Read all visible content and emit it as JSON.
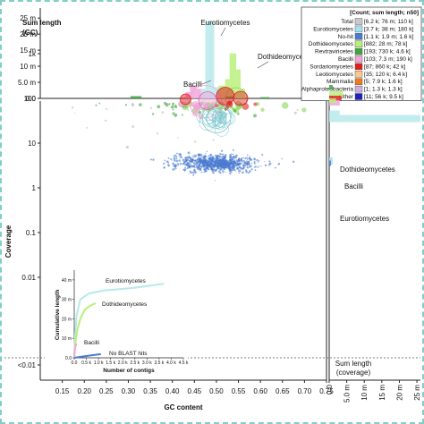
{
  "chart_data": {
    "type": "scatter",
    "title": "",
    "xlabel": "GC content",
    "ylabel": "Coverage",
    "xlim": [
      0.1,
      0.75
    ],
    "xticks": [
      "0.15",
      "0.20",
      "0.25",
      "0.30",
      "0.35",
      "0.40",
      "0.45",
      "0.50",
      "0.55",
      "0.60",
      "0.65",
      "0.70",
      "0.75"
    ],
    "yticks": [
      "1k",
      "100",
      "10",
      "1",
      "0.1",
      "0.01",
      "<0.01"
    ],
    "top_panel": {
      "ylabel": "Sum length\n(GC)",
      "yticks": [
        "25 m",
        "20 m",
        "15 m",
        "10 m",
        "5.0 m",
        "0.0"
      ],
      "ylim_m": [
        0,
        27
      ],
      "annotations": [
        "Eurotiomycetes",
        "Dothideomycetes",
        "Bacilli"
      ],
      "series": [
        {
          "taxon": "Eurotiomycetes",
          "color": "#b7e9ea",
          "bins": [
            [
              0.475,
              0.495,
              24.0
            ],
            [
              0.465,
              0.475,
              3.0
            ],
            [
              0.495,
              0.505,
              3.5
            ]
          ]
        },
        {
          "taxon": "Dothideomycetes",
          "color": "#b8f07a",
          "bins": [
            [
              0.505,
              0.52,
              4.0
            ],
            [
              0.52,
              0.53,
              6.0
            ],
            [
              0.53,
              0.545,
              14.0
            ],
            [
              0.545,
              0.555,
              9.0
            ],
            [
              0.555,
              0.565,
              3.0
            ]
          ]
        },
        {
          "taxon": "Bacilli",
          "color": "#f0a6d8",
          "bins": [
            [
              0.43,
              0.44,
              2.0
            ],
            [
              0.44,
              0.455,
              4.0
            ],
            [
              0.455,
              0.465,
              3.0
            ]
          ]
        },
        {
          "taxon": "Revtraviricetes",
          "color": "#3fa53f",
          "bins": [
            [
              0.305,
              0.33,
              0.7
            ],
            [
              0.52,
              0.54,
              0.6
            ],
            [
              0.6,
              0.62,
              0.4
            ]
          ]
        }
      ]
    },
    "right_panel": {
      "xlabel": "Sum length\n(coverage)",
      "xticks": [
        "0.0",
        "5.0 m",
        "10 m",
        "15 m",
        "20 m",
        "25 m"
      ],
      "annotations": [
        "Dothideomycetes",
        "Bacilli",
        "Eurotiomycetes"
      ]
    },
    "legend": {
      "header": "[Count; sum length; n50]",
      "placement": "top-right",
      "entries": [
        {
          "name": "Total",
          "stats": "[6.2 k; 76 m; 110 k]",
          "color": "#c8c8c8"
        },
        {
          "name": "Eurotiomycetes",
          "stats": "[3.7 k; 38 m; 180 k]",
          "color": "#a6dff0"
        },
        {
          "name": "No-hit",
          "stats": "[1.1 k; 1.9 m; 1.6 k]",
          "color": "#4a7ad0"
        },
        {
          "name": "Dothideomycetes",
          "stats": "[882; 28 m; 78 k]",
          "color": "#b8f07a"
        },
        {
          "name": "Revtraviricetes",
          "stats": "[193; 730 k; 4.6 k]",
          "color": "#3fa53f"
        },
        {
          "name": "Bacilli",
          "stats": "[103; 7.3 m; 190 k]",
          "color": "#f0a6d8"
        },
        {
          "name": "Sordariomycetes",
          "stats": "[87; 860 k; 42 k]",
          "color": "#e02020"
        },
        {
          "name": "Leotiomycetes",
          "stats": "[35; 120 k; 6.4 k]",
          "color": "#f8c890"
        },
        {
          "name": "Mammalia",
          "stats": "[5; 7.9 k; 1.6 k]",
          "color": "#f07820"
        },
        {
          "name": "Alphaproteobacteria",
          "stats": "[1; 1.3 k; 1.3 k]",
          "color": "#c8b0e0"
        },
        {
          "name": "Other",
          "stats": "[11; 56 k; 9.5 k]",
          "color": "#2020c0"
        }
      ]
    },
    "clusters": [
      {
        "taxon": "No-hit",
        "color": "#4a7ad0",
        "gc": 0.5,
        "gc_sd": 0.045,
        "log_cov": 0.55,
        "log_sd": 0.09,
        "n": 900,
        "r": 1.0
      },
      {
        "taxon": "Eurotiomycetes",
        "color": "#7ec8d0",
        "gc": 0.5,
        "gc_sd": 0.012,
        "log_cov": 1.55,
        "log_sd": 0.1,
        "n": 22,
        "r": 9
      },
      {
        "taxon": "Dothideomycetes",
        "color": "#8ed45a",
        "gc": 0.5,
        "gc_sd": 0.055,
        "log_cov": 2.0,
        "log_sd": 0.12,
        "n": 130,
        "r": 3
      },
      {
        "taxon": "Revtraviricetes",
        "color": "#3fa53f",
        "gc": 0.44,
        "gc_sd": 0.08,
        "log_cov": 2.0,
        "log_sd": 0.18,
        "n": 110,
        "r": 1.5
      },
      {
        "taxon": "Bacilli",
        "color": "#f0a6d8",
        "gc": 0.44,
        "gc_sd": 0.02,
        "log_cov": 1.9,
        "log_sd": 0.15,
        "n": 25,
        "r": 3
      },
      {
        "taxon": "Sordariomycetes",
        "color": "#e02020",
        "gc": 0.53,
        "gc_sd": 0.05,
        "log_cov": 2.0,
        "log_sd": 0.1,
        "n": 40,
        "r": 3
      },
      {
        "taxon": "Total-scatter",
        "color": "#b8b8b8",
        "gc": 0.4,
        "gc_sd": 0.15,
        "log_cov": 2.6,
        "log_sd": 0.7,
        "n": 120,
        "r": 1.2
      }
    ],
    "inset": {
      "type": "line",
      "xlabel": "Number of contigs",
      "ylabel": "Cumulative length",
      "xticks": [
        "0.0",
        "0.5 k",
        "1.0 k",
        "1.5 k",
        "2.0 k",
        "2.5 k",
        "3.0 k",
        "3.5 k",
        "4.0 k",
        "4.5 k"
      ],
      "yticks": [
        "40 m",
        "30 m",
        "20 m",
        "10 m",
        "0.0"
      ],
      "xlim": [
        0,
        4.5
      ],
      "ylim": [
        0,
        45
      ],
      "series": [
        {
          "name": "Eurotiomycetes",
          "color": "#b7e9ea",
          "points": [
            [
              0,
              0
            ],
            [
              0.03,
              10
            ],
            [
              0.1,
              22
            ],
            [
              0.25,
              30
            ],
            [
              0.6,
              33
            ],
            [
              1.2,
              34.5
            ],
            [
              2.5,
              36
            ],
            [
              3.7,
              38
            ]
          ]
        },
        {
          "name": "Dothideomycetes",
          "color": "#b8f07a",
          "points": [
            [
              0,
              0
            ],
            [
              0.05,
              8
            ],
            [
              0.12,
              14
            ],
            [
              0.25,
              20
            ],
            [
              0.45,
              25
            ],
            [
              0.7,
              27
            ],
            [
              0.88,
              28
            ]
          ]
        },
        {
          "name": "Bacilli",
          "color": "#f0a6d8",
          "points": [
            [
              0,
              0
            ],
            [
              0.02,
              4
            ],
            [
              0.05,
              6
            ],
            [
              0.1,
              7.3
            ]
          ]
        },
        {
          "name": "No BLAST hits",
          "color": "#4a7ad0",
          "points": [
            [
              0,
              0
            ],
            [
              0.3,
              0.6
            ],
            [
              0.7,
              1.3
            ],
            [
              1.1,
              1.9
            ]
          ]
        }
      ]
    }
  }
}
